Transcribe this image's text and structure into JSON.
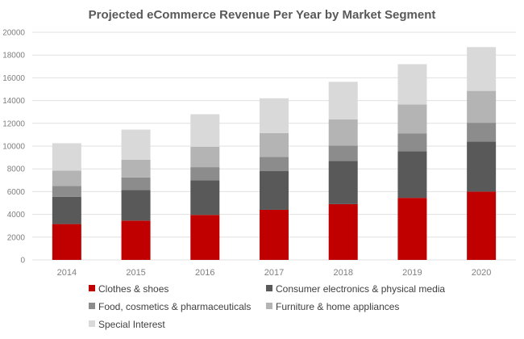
{
  "chart_data": {
    "type": "bar",
    "stacked": true,
    "title": "Projected eCommerce Revenue Per Year by Market Segment",
    "xlabel": "",
    "ylabel": "",
    "categories": [
      "2014",
      "2015",
      "2016",
      "2017",
      "2018",
      "2019",
      "2020"
    ],
    "ylim": [
      0,
      20000
    ],
    "yticks": [
      0,
      2000,
      4000,
      6000,
      8000,
      10000,
      12000,
      14000,
      16000,
      18000,
      20000
    ],
    "grid": true,
    "legend_position": "bottom",
    "series": [
      {
        "name": "Clothes & shoes",
        "color": "#c00000",
        "values": [
          3150,
          3450,
          3950,
          4400,
          4900,
          5450,
          6000
        ]
      },
      {
        "name": "Consumer electronics & physical media",
        "color": "#595959",
        "values": [
          2400,
          2700,
          3050,
          3400,
          3800,
          4100,
          4400
        ]
      },
      {
        "name": "Food, cosmetics & pharmaceuticals",
        "color": "#8c8c8c",
        "values": [
          950,
          1100,
          1150,
          1250,
          1350,
          1550,
          1650
        ]
      },
      {
        "name": "Furniture & home appliances",
        "color": "#b4b4b4",
        "values": [
          1350,
          1550,
          1800,
          2100,
          2300,
          2550,
          2800
        ]
      },
      {
        "name": "Special Interest",
        "color": "#d9d9d9",
        "values": [
          2400,
          2650,
          2850,
          3050,
          3300,
          3550,
          3850
        ]
      }
    ]
  }
}
